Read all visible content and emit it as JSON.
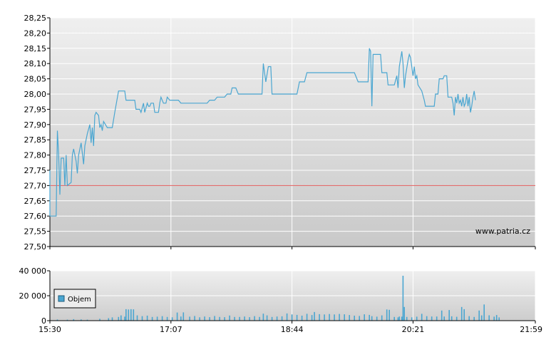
{
  "watermark": "www.patria.cz",
  "colors": {
    "line": "#4aa6d1",
    "reference": "#e05a5a",
    "volume": "#4aa6d1",
    "grid": "#ffffff",
    "plot_top": "#efefef",
    "plot_bottom": "#c9c9c9"
  },
  "chart_data": [
    {
      "type": "line",
      "ylim": [
        27.5,
        28.25
      ],
      "y_ticks": [
        "28,25",
        "28,20",
        "28,15",
        "28,10",
        "28,05",
        "28,00",
        "27,95",
        "27,90",
        "27,85",
        "27,80",
        "27,75",
        "27,70",
        "27,65",
        "27,60",
        "27,55",
        "27,50"
      ],
      "y_tick_values": [
        28.25,
        28.2,
        28.15,
        28.1,
        28.05,
        28.0,
        27.95,
        27.9,
        27.85,
        27.8,
        27.75,
        27.7,
        27.65,
        27.6,
        27.55,
        27.5
      ],
      "x_ticks": [
        "15:30",
        "17:07",
        "18:44",
        "20:21",
        "21:59"
      ],
      "xlim": [
        "15:30",
        "21:59"
      ],
      "grid": true,
      "reference_value": 27.7,
      "series": [
        {
          "points": [
            [
              "15:30",
              27.75
            ],
            [
              "15:30",
              27.6
            ],
            [
              "15:35",
              27.6
            ],
            [
              "15:36",
              27.88
            ],
            [
              "15:37",
              27.8
            ],
            [
              "15:38",
              27.67
            ],
            [
              "15:39",
              27.79
            ],
            [
              "15:41",
              27.79
            ],
            [
              "15:42",
              27.7
            ],
            [
              "15:43",
              27.8
            ],
            [
              "15:44",
              27.7
            ],
            [
              "15:47",
              27.71
            ],
            [
              "15:48",
              27.8
            ],
            [
              "15:49",
              27.82
            ],
            [
              "15:51",
              27.78
            ],
            [
              "15:52",
              27.74
            ],
            [
              "15:53",
              27.8
            ],
            [
              "15:55",
              27.84
            ],
            [
              "15:57",
              27.77
            ],
            [
              "15:58",
              27.83
            ],
            [
              "16:00",
              27.87
            ],
            [
              "16:02",
              27.9
            ],
            [
              "16:03",
              27.84
            ],
            [
              "16:04",
              27.89
            ],
            [
              "16:05",
              27.83
            ],
            [
              "16:06",
              27.93
            ],
            [
              "16:07",
              27.94
            ],
            [
              "16:09",
              27.93
            ],
            [
              "16:10",
              27.89
            ],
            [
              "16:11",
              27.9
            ],
            [
              "16:12",
              27.88
            ],
            [
              "16:13",
              27.91
            ],
            [
              "16:16",
              27.89
            ],
            [
              "16:20",
              27.89
            ],
            [
              "16:22",
              27.94
            ],
            [
              "16:25",
              28.01
            ],
            [
              "16:30",
              28.01
            ],
            [
              "16:31",
              27.98
            ],
            [
              "16:38",
              27.98
            ],
            [
              "16:39",
              27.95
            ],
            [
              "16:42",
              27.95
            ],
            [
              "16:43",
              27.94
            ],
            [
              "16:45",
              27.97
            ],
            [
              "16:46",
              27.94
            ],
            [
              "16:48",
              27.97
            ],
            [
              "16:49",
              27.96
            ],
            [
              "16:50",
              27.96
            ],
            [
              "16:51",
              27.97
            ],
            [
              "16:53",
              27.97
            ],
            [
              "16:54",
              27.94
            ],
            [
              "16:57",
              27.94
            ],
            [
              "16:58",
              27.97
            ],
            [
              "16:59",
              27.99
            ],
            [
              "17:01",
              27.97
            ],
            [
              "17:03",
              27.97
            ],
            [
              "17:04",
              27.99
            ],
            [
              "17:06",
              27.98
            ],
            [
              "17:13",
              27.98
            ],
            [
              "17:15",
              27.97
            ],
            [
              "17:36",
              27.97
            ],
            [
              "17:38",
              27.98
            ],
            [
              "17:42",
              27.98
            ],
            [
              "17:44",
              27.99
            ],
            [
              "17:50",
              27.99
            ],
            [
              "17:52",
              28.0
            ],
            [
              "17:55",
              28.0
            ],
            [
              "17:56",
              28.02
            ],
            [
              "17:59",
              28.02
            ],
            [
              "18:01",
              28.0
            ],
            [
              "18:20",
              28.0
            ],
            [
              "18:21",
              28.1
            ],
            [
              "18:23",
              28.04
            ],
            [
              "18:25",
              28.09
            ],
            [
              "18:27",
              28.09
            ],
            [
              "18:28",
              28.0
            ],
            [
              "18:35",
              28.0
            ],
            [
              "18:48",
              28.0
            ],
            [
              "18:50",
              28.04
            ],
            [
              "18:54",
              28.04
            ],
            [
              "18:56",
              28.07
            ],
            [
              "19:34",
              28.07
            ],
            [
              "19:37",
              28.04
            ],
            [
              "19:45",
              28.04
            ],
            [
              "19:46",
              28.15
            ],
            [
              "19:47",
              28.14
            ],
            [
              "19:48",
              27.96
            ],
            [
              "19:49",
              28.13
            ],
            [
              "19:55",
              28.13
            ],
            [
              "19:56",
              28.07
            ],
            [
              "20:00",
              28.07
            ],
            [
              "20:01",
              28.03
            ],
            [
              "20:06",
              28.03
            ],
            [
              "20:08",
              28.06
            ],
            [
              "20:09",
              28.02
            ],
            [
              "20:10",
              28.09
            ],
            [
              "20:12",
              28.14
            ],
            [
              "20:13",
              28.1
            ],
            [
              "20:14",
              28.02
            ],
            [
              "20:15",
              28.06
            ],
            [
              "20:17",
              28.11
            ],
            [
              "20:18",
              28.13
            ],
            [
              "20:19",
              28.12
            ],
            [
              "20:21",
              28.06
            ],
            [
              "20:22",
              28.09
            ],
            [
              "20:23",
              28.05
            ],
            [
              "20:24",
              28.06
            ],
            [
              "20:25",
              28.03
            ],
            [
              "20:28",
              28.01
            ],
            [
              "20:30",
              27.98
            ],
            [
              "20:31",
              27.96
            ],
            [
              "20:38",
              27.96
            ],
            [
              "20:39",
              28.0
            ],
            [
              "20:41",
              28.0
            ],
            [
              "20:42",
              28.05
            ],
            [
              "20:45",
              28.05
            ],
            [
              "20:46",
              28.06
            ],
            [
              "20:48",
              28.06
            ],
            [
              "20:49",
              27.99
            ],
            [
              "20:52",
              27.99
            ],
            [
              "20:53",
              27.97
            ],
            [
              "20:54",
              27.93
            ],
            [
              "20:55",
              27.99
            ],
            [
              "20:56",
              27.97
            ],
            [
              "20:57",
              28.0
            ],
            [
              "20:58",
              27.97
            ],
            [
              "20:59",
              27.98
            ],
            [
              "21:00",
              27.96
            ],
            [
              "21:01",
              27.99
            ],
            [
              "21:02",
              27.96
            ],
            [
              "21:03",
              27.97
            ],
            [
              "21:04",
              28.0
            ],
            [
              "21:05",
              27.96
            ],
            [
              "21:06",
              27.99
            ],
            [
              "21:07",
              27.94
            ],
            [
              "21:08",
              27.96
            ],
            [
              "21:09",
              27.99
            ],
            [
              "21:10",
              28.01
            ],
            [
              "21:11",
              27.98
            ]
          ]
        }
      ]
    },
    {
      "type": "bar",
      "ylim": [
        0,
        40000
      ],
      "y_ticks": [
        "40 000",
        "20 000",
        "0"
      ],
      "y_tick_values": [
        40000,
        20000,
        0
      ],
      "x_ticks": [
        "15:30",
        "17:07",
        "18:44",
        "20:21",
        "21:59"
      ],
      "xlim": [
        "15:30",
        "21:59"
      ],
      "grid": true,
      "legend": {
        "label": "Objem",
        "placement": "top-left"
      },
      "series": [
        {
          "name": "Objem",
          "points": [
            [
              "15:36",
              900
            ],
            [
              "15:44",
              800
            ],
            [
              "15:49",
              1200
            ],
            [
              "15:55",
              1000
            ],
            [
              "16:00",
              800
            ],
            [
              "16:10",
              1500
            ],
            [
              "16:17",
              2000
            ],
            [
              "16:20",
              2600
            ],
            [
              "16:25",
              3000
            ],
            [
              "16:27",
              4200
            ],
            [
              "16:30",
              3200
            ],
            [
              "16:31",
              9200
            ],
            [
              "16:33",
              9000
            ],
            [
              "16:35",
              9200
            ],
            [
              "16:37",
              9100
            ],
            [
              "16:40",
              4200
            ],
            [
              "16:44",
              3600
            ],
            [
              "16:48",
              4000
            ],
            [
              "16:52",
              3000
            ],
            [
              "16:56",
              3200
            ],
            [
              "17:00",
              3600
            ],
            [
              "17:04",
              3000
            ],
            [
              "17:08",
              2700
            ],
            [
              "17:12",
              6500
            ],
            [
              "17:15",
              3300
            ],
            [
              "17:17",
              6600
            ],
            [
              "17:22",
              3200
            ],
            [
              "17:26",
              3700
            ],
            [
              "17:30",
              2700
            ],
            [
              "17:34",
              3300
            ],
            [
              "17:38",
              2800
            ],
            [
              "17:42",
              3700
            ],
            [
              "17:46",
              3000
            ],
            [
              "17:50",
              2800
            ],
            [
              "17:54",
              4100
            ],
            [
              "17:58",
              3000
            ],
            [
              "18:02",
              3000
            ],
            [
              "18:06",
              3300
            ],
            [
              "18:10",
              2800
            ],
            [
              "18:14",
              3600
            ],
            [
              "18:18",
              3000
            ],
            [
              "18:21",
              5600
            ],
            [
              "18:24",
              4200
            ],
            [
              "18:28",
              3000
            ],
            [
              "18:32",
              3300
            ],
            [
              "18:36",
              3500
            ],
            [
              "18:40",
              5800
            ],
            [
              "18:44",
              5000
            ],
            [
              "18:48",
              4600
            ],
            [
              "18:52",
              4000
            ],
            [
              "18:56",
              5500
            ],
            [
              "19:00",
              4500
            ],
            [
              "19:02",
              6900
            ],
            [
              "19:06",
              5200
            ],
            [
              "19:10",
              5000
            ],
            [
              "19:14",
              5300
            ],
            [
              "19:18",
              5000
            ],
            [
              "19:22",
              5400
            ],
            [
              "19:26",
              5100
            ],
            [
              "19:30",
              4500
            ],
            [
              "19:34",
              4000
            ],
            [
              "19:38",
              3800
            ],
            [
              "19:42",
              5100
            ],
            [
              "19:46",
              4600
            ],
            [
              "19:48",
              3600
            ],
            [
              "19:52",
              3200
            ],
            [
              "19:56",
              4200
            ],
            [
              "20:00",
              9000
            ],
            [
              "20:02",
              8700
            ],
            [
              "20:06",
              3000
            ],
            [
              "20:09",
              2600
            ],
            [
              "20:10",
              3300
            ],
            [
              "20:12",
              3200
            ],
            [
              "20:13",
              36000
            ],
            [
              "20:14",
              11000
            ],
            [
              "20:16",
              3000
            ],
            [
              "20:20",
              2700
            ],
            [
              "20:24",
              3200
            ],
            [
              "20:28",
              5500
            ],
            [
              "20:32",
              3600
            ],
            [
              "20:36",
              3300
            ],
            [
              "20:40",
              3300
            ],
            [
              "20:44",
              8100
            ],
            [
              "20:46",
              3300
            ],
            [
              "20:50",
              8500
            ],
            [
              "20:52",
              3500
            ],
            [
              "20:56",
              3100
            ],
            [
              "21:00",
              11000
            ],
            [
              "21:02",
              9200
            ],
            [
              "21:06",
              3600
            ],
            [
              "21:10",
              3000
            ],
            [
              "21:14",
              8100
            ],
            [
              "21:16",
              4200
            ],
            [
              "21:18",
              13000
            ],
            [
              "21:22",
              4300
            ],
            [
              "21:26",
              3200
            ],
            [
              "21:28",
              4500
            ],
            [
              "21:30",
              2600
            ]
          ]
        }
      ]
    }
  ]
}
